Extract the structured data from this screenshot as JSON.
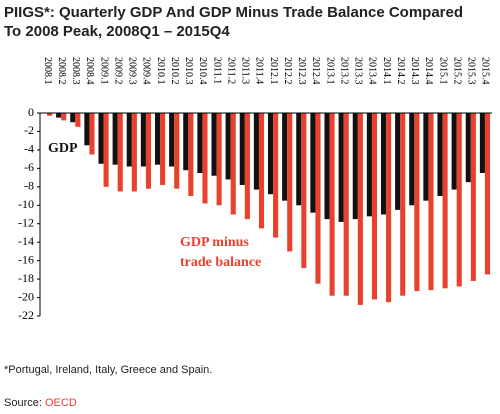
{
  "chart_data": {
    "type": "bar",
    "title_line1": "PIIGS*: Quarterly GDP And GDP Minus Trade Balance Compared",
    "title_line2": "To 2008 Peak, 2008Q1 – 2015Q4",
    "categories": [
      "2008.1",
      "2008.2",
      "2008.3",
      "2008.4",
      "2009.1",
      "2009.2",
      "2009.3",
      "2009.4",
      "2010.1",
      "2010.2",
      "2010.3",
      "2010.4",
      "2011.1",
      "2011.2",
      "2011.3",
      "2011.4",
      "2012.1",
      "2012.2",
      "2012.3",
      "2012.4",
      "2013.1",
      "2013.2",
      "2013.3",
      "2013.4",
      "2014.1",
      "2014.2",
      "2014.3",
      "2014.4",
      "2015.1",
      "2015.2",
      "2015.3",
      "2015.4"
    ],
    "series": [
      {
        "name": "GDP",
        "color": "#111111",
        "values": [
          0,
          -0.5,
          -1,
          -3.5,
          -5.5,
          -5.6,
          -5.8,
          -5.8,
          -5.6,
          -5.8,
          -6.2,
          -6.5,
          -6.8,
          -7.2,
          -7.8,
          -8.3,
          -8.8,
          -9.5,
          -10,
          -10.8,
          -11.5,
          -11.8,
          -11.5,
          -11.2,
          -11,
          -10.5,
          -10,
          -9.5,
          -9,
          -8.3,
          -7.5,
          -6.5
        ]
      },
      {
        "name": "GDP minus trade balance",
        "color": "#e8412e",
        "values": [
          -0.3,
          -0.8,
          -1.5,
          -4.5,
          -8,
          -8.5,
          -8.5,
          -8.2,
          -7.8,
          -8.2,
          -9,
          -9.8,
          -10,
          -11,
          -11.5,
          -12.5,
          -13.5,
          -15,
          -16.8,
          -18.5,
          -19.8,
          -19.8,
          -20.8,
          -20.2,
          -20.5,
          -19.8,
          -19.3,
          -19.2,
          -19,
          -18.8,
          -18.2,
          -17.5
        ]
      }
    ],
    "annotation_gdp": "GDP",
    "annotation_line1": "GDP minus",
    "annotation_line2": "trade balance",
    "ylim": [
      -22,
      0
    ],
    "yticks": [
      0,
      -2,
      -4,
      -6,
      -8,
      -10,
      -12,
      -14,
      -16,
      -18,
      -20,
      -22
    ],
    "footnote": "*Portugal, Ireland, Italy, Greece and Spain.",
    "source_label": "Source:",
    "source": "OECD"
  }
}
